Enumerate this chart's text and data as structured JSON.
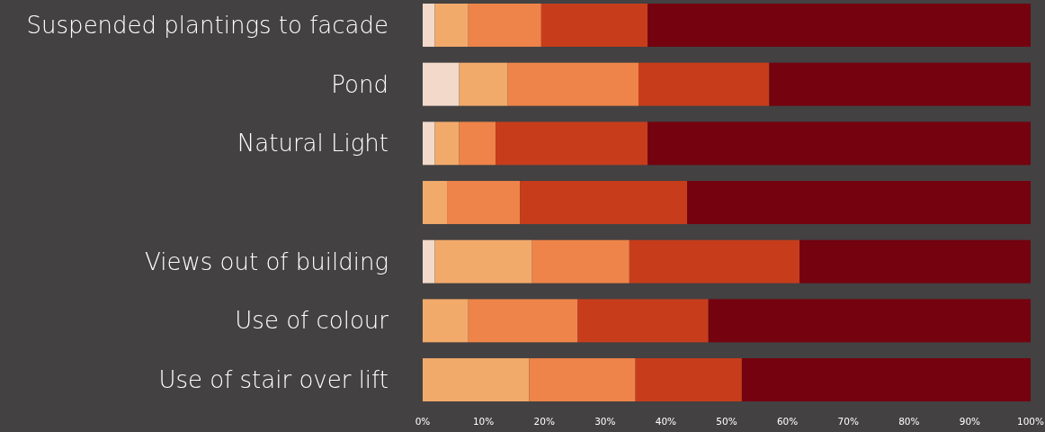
{
  "chart_data": {
    "type": "bar",
    "orientation": "horizontal",
    "stacked": true,
    "categories": [
      "Suspended plantings to facade",
      "Pond",
      "Natural Light",
      null,
      "Views out of building",
      "Use of colour",
      "Use of stair over lift"
    ],
    "series": [
      {
        "color": "#f2d9ca",
        "values": [
          2,
          6,
          2,
          0,
          2,
          0,
          0
        ]
      },
      {
        "color": "#f2aa6b",
        "values": [
          5.5,
          8,
          4,
          4,
          16,
          7.5,
          17.5
        ]
      },
      {
        "color": "#ee8449",
        "values": [
          12,
          21.5,
          6,
          12,
          16,
          18,
          17.5
        ]
      },
      {
        "color": "#c73d1c",
        "values": [
          17.5,
          21.5,
          25,
          27.5,
          28,
          21.5,
          17.5
        ]
      },
      {
        "color": "#74030f",
        "values": [
          63,
          43,
          63,
          56.5,
          38,
          53,
          47.5
        ]
      }
    ],
    "xlim": [
      0,
      100
    ],
    "xticks": [
      {
        "value": 0,
        "label": "0%"
      },
      {
        "value": 10,
        "label": "10%"
      },
      {
        "value": 20,
        "label": "20%"
      },
      {
        "value": 30,
        "label": "30%"
      },
      {
        "value": 40,
        "label": "40%"
      },
      {
        "value": 50,
        "label": "50%"
      },
      {
        "value": 60,
        "label": "60%"
      },
      {
        "value": 70,
        "label": "70%"
      },
      {
        "value": 80,
        "label": "80%"
      },
      {
        "value": 90,
        "label": "90%"
      },
      {
        "value": 100,
        "label": "100%"
      }
    ]
  }
}
